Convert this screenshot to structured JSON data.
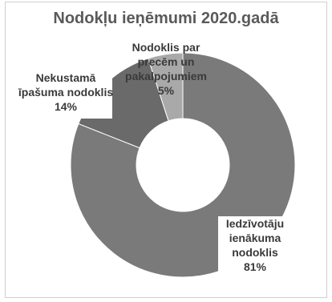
{
  "chart_data": {
    "type": "pie",
    "variant": "donut",
    "title": "Nodokļu ieņēmumi 2020.gadā",
    "slices": [
      {
        "name": "Iedzīvotāju ienākuma nodoklis",
        "value": 81,
        "value_label": "81%",
        "color": "#7a7a7a",
        "label_lines": [
          "Iedzīvotāju",
          "ienākuma",
          "nodoklis"
        ]
      },
      {
        "name": "Nekustamā īpašuma nodoklis",
        "value": 14,
        "value_label": "14%",
        "color": "#6a6a6a",
        "label_lines": [
          "Nekustamā",
          "īpašuma nodoklis"
        ]
      },
      {
        "name": "Nodoklis par precēm un pakalpojumiem",
        "value": 5,
        "value_label": "5%",
        "color": "#a9a9a9",
        "label_lines": [
          "Nodoklis par",
          "precēm un",
          "pakalpojumiem"
        ]
      }
    ],
    "legend": "none"
  }
}
